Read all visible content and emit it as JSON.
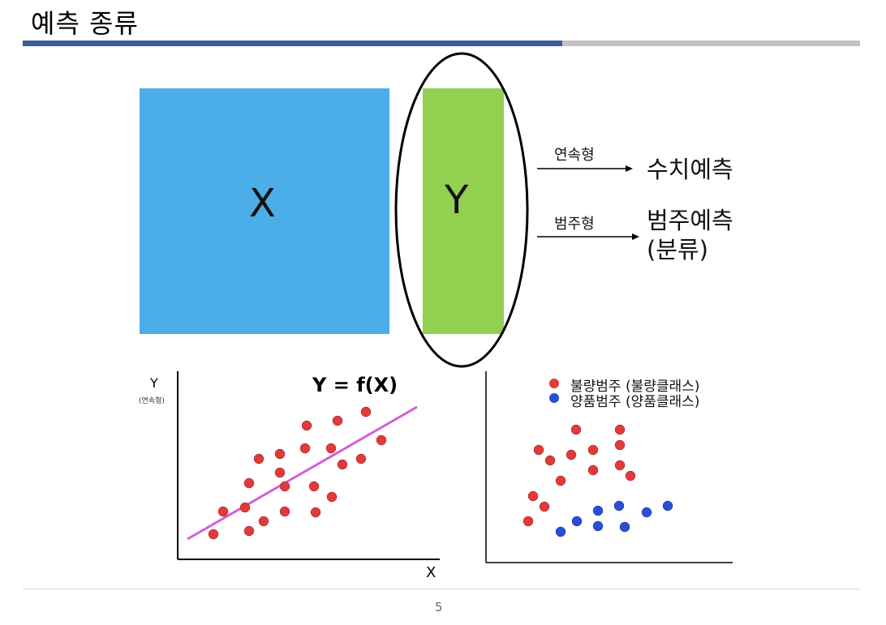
{
  "title": "예측 종류",
  "diagram": {
    "x_label": "X",
    "y_label": "Y",
    "arrows": [
      {
        "label": "연속형",
        "result": "수치예측"
      },
      {
        "label": "범주형",
        "result": "범주예측\n(분류)"
      }
    ]
  },
  "regression_plot": {
    "y_axis_label": "Y",
    "y_axis_sublabel": "(연속형)",
    "x_axis_label": "X",
    "formula": "Y = f(X)"
  },
  "classification_plot": {
    "legend": [
      {
        "label": "불량범주 (불량클래스)",
        "color": "#e03a3a"
      },
      {
        "label": "양품범주 (양품클래스)",
        "color": "#2a4fd6"
      }
    ]
  },
  "colors": {
    "x_box": "#4caee8",
    "y_box": "#92d050",
    "regression_line": "#d65ed6",
    "red_point": "#e03a3a",
    "blue_point": "#2a4fd6"
  },
  "page_number": "5"
}
